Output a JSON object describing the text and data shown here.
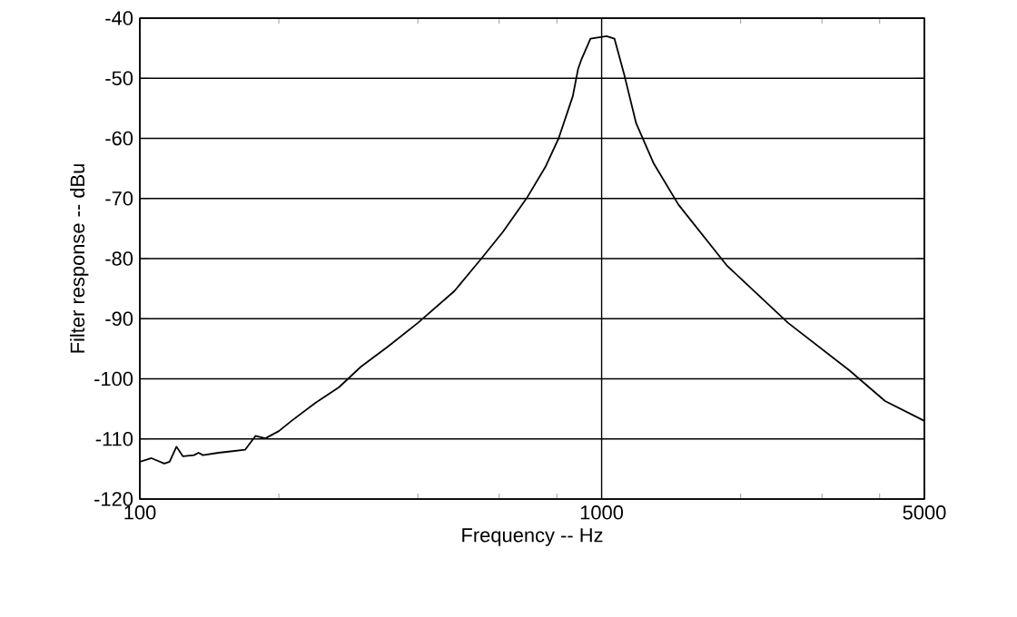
{
  "chart_data": {
    "type": "line",
    "xlabel": "Frequency -- Hz",
    "ylabel": "Filter response -- dBu",
    "log": "x",
    "grid": true,
    "color": "#000000",
    "xlim": [
      100,
      5000
    ],
    "xticks": [
      100,
      {
        "value": 200,
        "label": null
      },
      {
        "value": 400,
        "label": null
      },
      {
        "value": 600,
        "label": null
      },
      {
        "value": 800,
        "label": null
      },
      1000,
      {
        "value": 2000,
        "label": null
      },
      {
        "value": 3000,
        "label": null
      },
      {
        "value": 4000,
        "label": null
      },
      5000
    ],
    "ylim": [
      -120,
      -40
    ],
    "yticks": [
      -120,
      -110,
      -100,
      -90,
      -80,
      -70,
      -60,
      -50,
      -40
    ],
    "x": [
      100,
      106,
      113,
      116,
      120,
      124,
      131,
      134,
      137,
      148,
      169,
      178,
      187,
      200,
      213,
      240,
      270,
      301,
      345,
      400,
      480,
      549,
      612,
      689,
      755,
      807,
      866,
      889,
      905,
      946,
      1025,
      1066,
      1121,
      1188,
      1297,
      1466,
      1865,
      2534,
      3441,
      4110,
      5000
    ],
    "values": [
      -113.8,
      -113.2,
      -114.1,
      -113.8,
      -111.3,
      -112.9,
      -112.7,
      -112.3,
      -112.7,
      -112.3,
      -111.8,
      -109.5,
      -109.9,
      -108.7,
      -107,
      -104,
      -101.4,
      -98,
      -94.6,
      -90.7,
      -85.4,
      -80,
      -75.5,
      -69.9,
      -64.8,
      -60,
      -53,
      -48.5,
      -46.8,
      -43.4,
      -43,
      -43.4,
      -49.6,
      -57.5,
      -64.2,
      -71,
      -81.1,
      -90.7,
      -98.6,
      -103.7,
      -107
    ]
  }
}
